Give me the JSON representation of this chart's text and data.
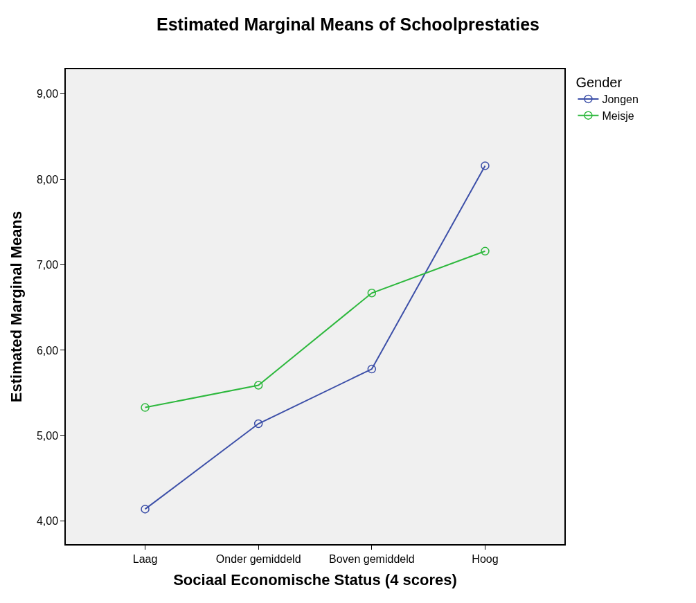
{
  "chart_data": {
    "type": "line",
    "title": "Estimated Marginal Means of Schoolprestaties",
    "xlabel": "Sociaal Economische Status (4 scores)",
    "ylabel": "Estimated Marginal Means",
    "legend_title": "Gender",
    "categories": [
      "Laag",
      "Onder gemiddeld",
      "Boven gemiddeld",
      "Hoog"
    ],
    "series": [
      {
        "name": "Jongen",
        "color": "#3c4fa8",
        "values": [
          4.14,
          5.14,
          5.78,
          8.16
        ]
      },
      {
        "name": "Meisje",
        "color": "#2db83d",
        "values": [
          5.33,
          5.59,
          6.67,
          7.16
        ]
      }
    ],
    "ylim": [
      3.73,
      9.29
    ],
    "yticks": [
      {
        "value": 4,
        "label": "4,00"
      },
      {
        "value": 5,
        "label": "5,00"
      },
      {
        "value": 6,
        "label": "6,00"
      },
      {
        "value": 7,
        "label": "7,00"
      },
      {
        "value": 8,
        "label": "8,00"
      },
      {
        "value": 9,
        "label": "9,00"
      }
    ],
    "grid": false,
    "legend": "top right",
    "marker": "circle",
    "line_style": "solid"
  }
}
